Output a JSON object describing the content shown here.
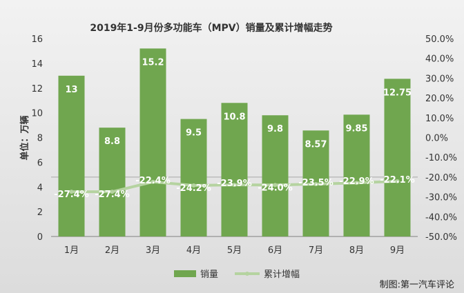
{
  "chart_data": {
    "type": "bar+line",
    "title": "2019年1-9月份多功能车（MPV）销量及累计增幅走势",
    "ylabel": "单位：万辆",
    "categories": [
      "1月",
      "2月",
      "3月",
      "4月",
      "5月",
      "6月",
      "7月",
      "8月",
      "9月"
    ],
    "series": [
      {
        "name": "销量",
        "type": "bar",
        "axis": "left",
        "color": "#70a64f",
        "values": [
          13,
          8.8,
          15.2,
          9.5,
          10.8,
          9.8,
          8.57,
          9.85,
          12.75
        ],
        "labels": [
          "13",
          "8.8",
          "15.2",
          "9.5",
          "10.8",
          "9.8",
          "8.57",
          "9.85",
          "12.75"
        ]
      },
      {
        "name": "累计增幅",
        "type": "line",
        "axis": "right",
        "color": "#b5d3a0",
        "values": [
          -27.4,
          -27.4,
          -22.4,
          -24.2,
          -23.9,
          -24.0,
          -23.5,
          -22.9,
          -22.1
        ],
        "labels": [
          "-27.4%",
          "-27.4%",
          "-22.4%",
          "-24.2%",
          "-23.9%",
          "-24.0%",
          "-23.5%",
          "-22.9%",
          "-22.1%"
        ]
      }
    ],
    "left_axis": {
      "range": [
        0,
        16
      ],
      "ticks": [
        "0",
        "2",
        "4",
        "6",
        "8",
        "10",
        "12",
        "14",
        "16"
      ]
    },
    "right_axis": {
      "range": [
        -50,
        50
      ],
      "ticks": [
        "-50.0%",
        "-40.0%",
        "-30.0%",
        "-20.0%",
        "-10.0%",
        "0.0%",
        "10.0%",
        "20.0%",
        "30.0%",
        "40.0%",
        "50.0%"
      ]
    },
    "legend_position": "bottom"
  },
  "footer": "制图:第一汽车评论"
}
